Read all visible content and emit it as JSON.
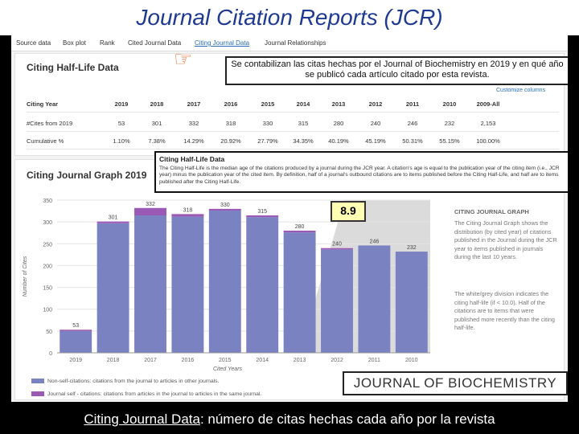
{
  "slide_title": "Journal Citation Reports (JCR)",
  "tabs": [
    "Source data",
    "Box plot",
    "Rank",
    "Cited Journal Data",
    "Citing Journal Data",
    "Journal Relationships"
  ],
  "active_tab": "Citing Journal Data",
  "half_life_card": {
    "title": "Citing Half-Life Data",
    "customize": "Customize columns",
    "table": {
      "columns": [
        "Citing Year",
        "2019",
        "2018",
        "2017",
        "2016",
        "2015",
        "2014",
        "2013",
        "2012",
        "2011",
        "2010",
        "2009-All"
      ],
      "rows": [
        {
          "label": "#Cites from 2019",
          "values": [
            "53",
            "301",
            "332",
            "318",
            "330",
            "315",
            "280",
            "240",
            "246",
            "232",
            "2,153"
          ]
        },
        {
          "label": "Cumulative %",
          "values": [
            "1.10%",
            "7.38%",
            "14.29%",
            "20.92%",
            "27.79%",
            "34.35%",
            "40.19%",
            "45.19%",
            "50.31%",
            "55.15%",
            "100.00%"
          ]
        }
      ]
    }
  },
  "annotation_note": "Se contabilizan las citas hechas por el Journal of Biochemistry en 2019 y en qué año se publicó cada artículo citado por esta revista.",
  "popup": {
    "title": "Citing Half-Life Data",
    "text": "The Citing Half-Life is the median age of the citations produced by a journal during the JCR year. A citation's age is equal to the publication year of the citing item (i.e., JCR year) minus the publication year of the cited item. By definition, half of a journal's outbound citations are to items published before the Citing Half-Life, and half are to items published after the Citing Half-Life."
  },
  "graph_card": {
    "title": "Citing Journal Graph 2019"
  },
  "half_life_value": "8.9",
  "chart_data": {
    "type": "bar",
    "categories": [
      "2019",
      "2018",
      "2017",
      "2016",
      "2015",
      "2014",
      "2013",
      "2012",
      "2011",
      "2010"
    ],
    "series": [
      {
        "name": "Non-self-citations: citations from the journal to articles in other journals.",
        "values": [
          50,
          297,
          315,
          312,
          326,
          311,
          276,
          237,
          246,
          232
        ],
        "color": "#7b82c1"
      },
      {
        "name": "Journal self - citations: citations from articles in the journal to articles in the same journal.",
        "values": [
          3,
          4,
          17,
          6,
          4,
          4,
          4,
          3,
          0,
          0
        ],
        "color": "#9b59b6"
      }
    ],
    "totals": [
      "53",
      "301",
      "332",
      "318",
      "330",
      "315",
      "280",
      "240",
      "246",
      "232"
    ],
    "yticks": [
      "0",
      "50",
      "100",
      "150",
      "200",
      "250",
      "300",
      "350"
    ],
    "ylim": [
      0,
      350
    ],
    "xlabel": "Cited Years",
    "ylabel": "Number of Cites",
    "half_life_shading_from": "2012"
  },
  "sidebar": {
    "title": "CITING JOURNAL GRAPH",
    "paragraph1": "The Citing Journal Graph shows the distribution (by cited year) of citations published in the Journal during the JCR year to items published in journals during the last 10 years.",
    "paragraph2": "The white/grey division indicates the citing half-life (if < 10.0). Half of the citations are to items that were published more recently than the citing half-life."
  },
  "journal_name": "JOURNAL OF BIOCHEMISTRY",
  "footer": {
    "link": "Citing Journal Data",
    "rest": ": número de citas hechas cada año por la revista"
  }
}
